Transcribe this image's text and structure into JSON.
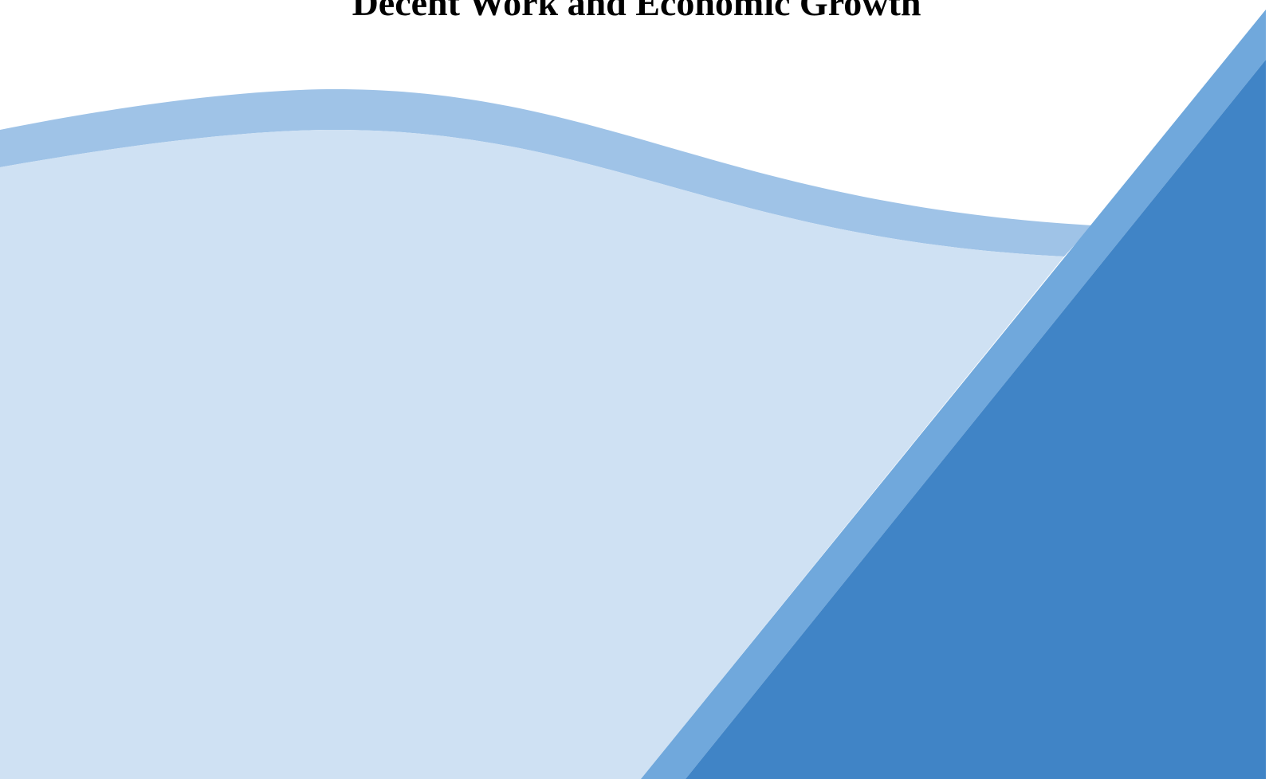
{
  "document": {
    "title": "Decent Work and Economic Growth"
  },
  "colors": {
    "background": "#ffffff",
    "wave_band": "#9fc3e7",
    "wave_fill": "#cfe1f3",
    "diagonal_band": "#70a8dc",
    "corner_fill": "#4084c6"
  }
}
